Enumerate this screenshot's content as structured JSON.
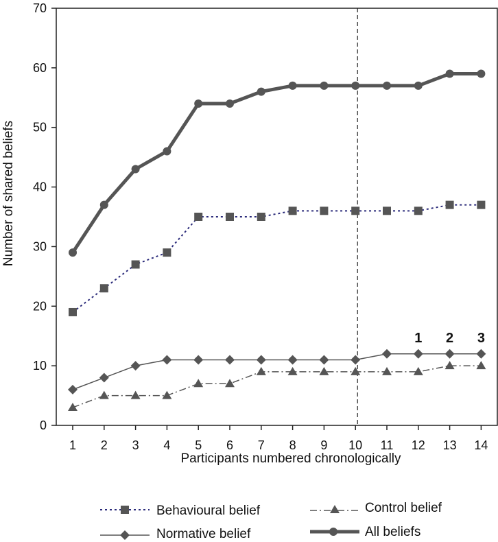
{
  "chart_data": {
    "type": "line",
    "xlabel": "Participants numbered chronologically",
    "ylabel": "Number of shared beliefs",
    "ylim": [
      0,
      70
    ],
    "yticks": [
      0,
      10,
      20,
      30,
      40,
      50,
      60,
      70
    ],
    "categories": [
      "1",
      "2",
      "3",
      "4",
      "5",
      "6",
      "7",
      "8",
      "9",
      "10",
      "11",
      "12",
      "13",
      "14"
    ],
    "series": [
      {
        "name": "Behavioural belief",
        "marker": "square",
        "line_style": "dotted",
        "color": "#2a2a7a",
        "values": [
          19,
          23,
          27,
          29,
          35,
          35,
          35,
          36,
          36,
          36,
          36,
          36,
          37,
          37
        ]
      },
      {
        "name": "Control belief",
        "marker": "triangle",
        "line_style": "dash-dot",
        "color": "#555555",
        "values": [
          3,
          5,
          5,
          5,
          7,
          7,
          9,
          9,
          9,
          9,
          9,
          9,
          10,
          10
        ]
      },
      {
        "name": "Normative belief",
        "marker": "diamond",
        "line_style": "solid-thin",
        "color": "#555555",
        "values": [
          6,
          8,
          10,
          11,
          11,
          11,
          11,
          11,
          11,
          11,
          12,
          12,
          12,
          12
        ]
      },
      {
        "name": "All beliefs",
        "marker": "circle",
        "line_style": "solid-thick",
        "color": "#555555",
        "values": [
          29,
          37,
          43,
          46,
          54,
          54,
          56,
          57,
          57,
          57,
          57,
          57,
          59,
          59
        ]
      }
    ],
    "vertical_reference_line": {
      "x": "10",
      "style": "dashed"
    },
    "annotations": [
      {
        "text": "1",
        "x": "12"
      },
      {
        "text": "2",
        "x": "13"
      },
      {
        "text": "3",
        "x": "14"
      }
    ],
    "grid": false,
    "legend_position": "bottom"
  }
}
